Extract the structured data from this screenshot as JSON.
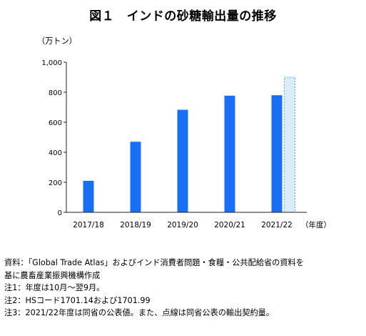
{
  "chart_data": {
    "type": "bar",
    "title": "図１　インドの砂糖輸出量の推移",
    "ylabel": "（万トン）",
    "xlabel_suffix": "（年度）",
    "ylim": [
      0,
      1000
    ],
    "yticks": [
      0,
      200,
      400,
      600,
      800,
      1000
    ],
    "ytick_labels": [
      "0",
      "200",
      "400",
      "600",
      "800",
      "1,000"
    ],
    "categories": [
      "2017/18",
      "2018/19",
      "2019/20",
      "2020/21",
      "2021/22"
    ],
    "values": [
      210,
      470,
      683,
      777,
      780
    ],
    "contract_value": 900,
    "grid": false,
    "bar_color": "#1a6ef5",
    "dotted_bar_fill": "#d9ecf8",
    "dotted_bar_stroke": "#5aaee0"
  },
  "notes": [
    "資料：「Global Trade Atlas」およびインド消費者問題・食糧・公共配給省の資料を",
    "基に農畜産業振興機構作成",
    "注1：年度は10月～翌9月。",
    "注2：HSコード1701.14および1701.99",
    "注3：2021/22年度は同省の公表値。また、点線は同省公表の輸出契約量。"
  ]
}
